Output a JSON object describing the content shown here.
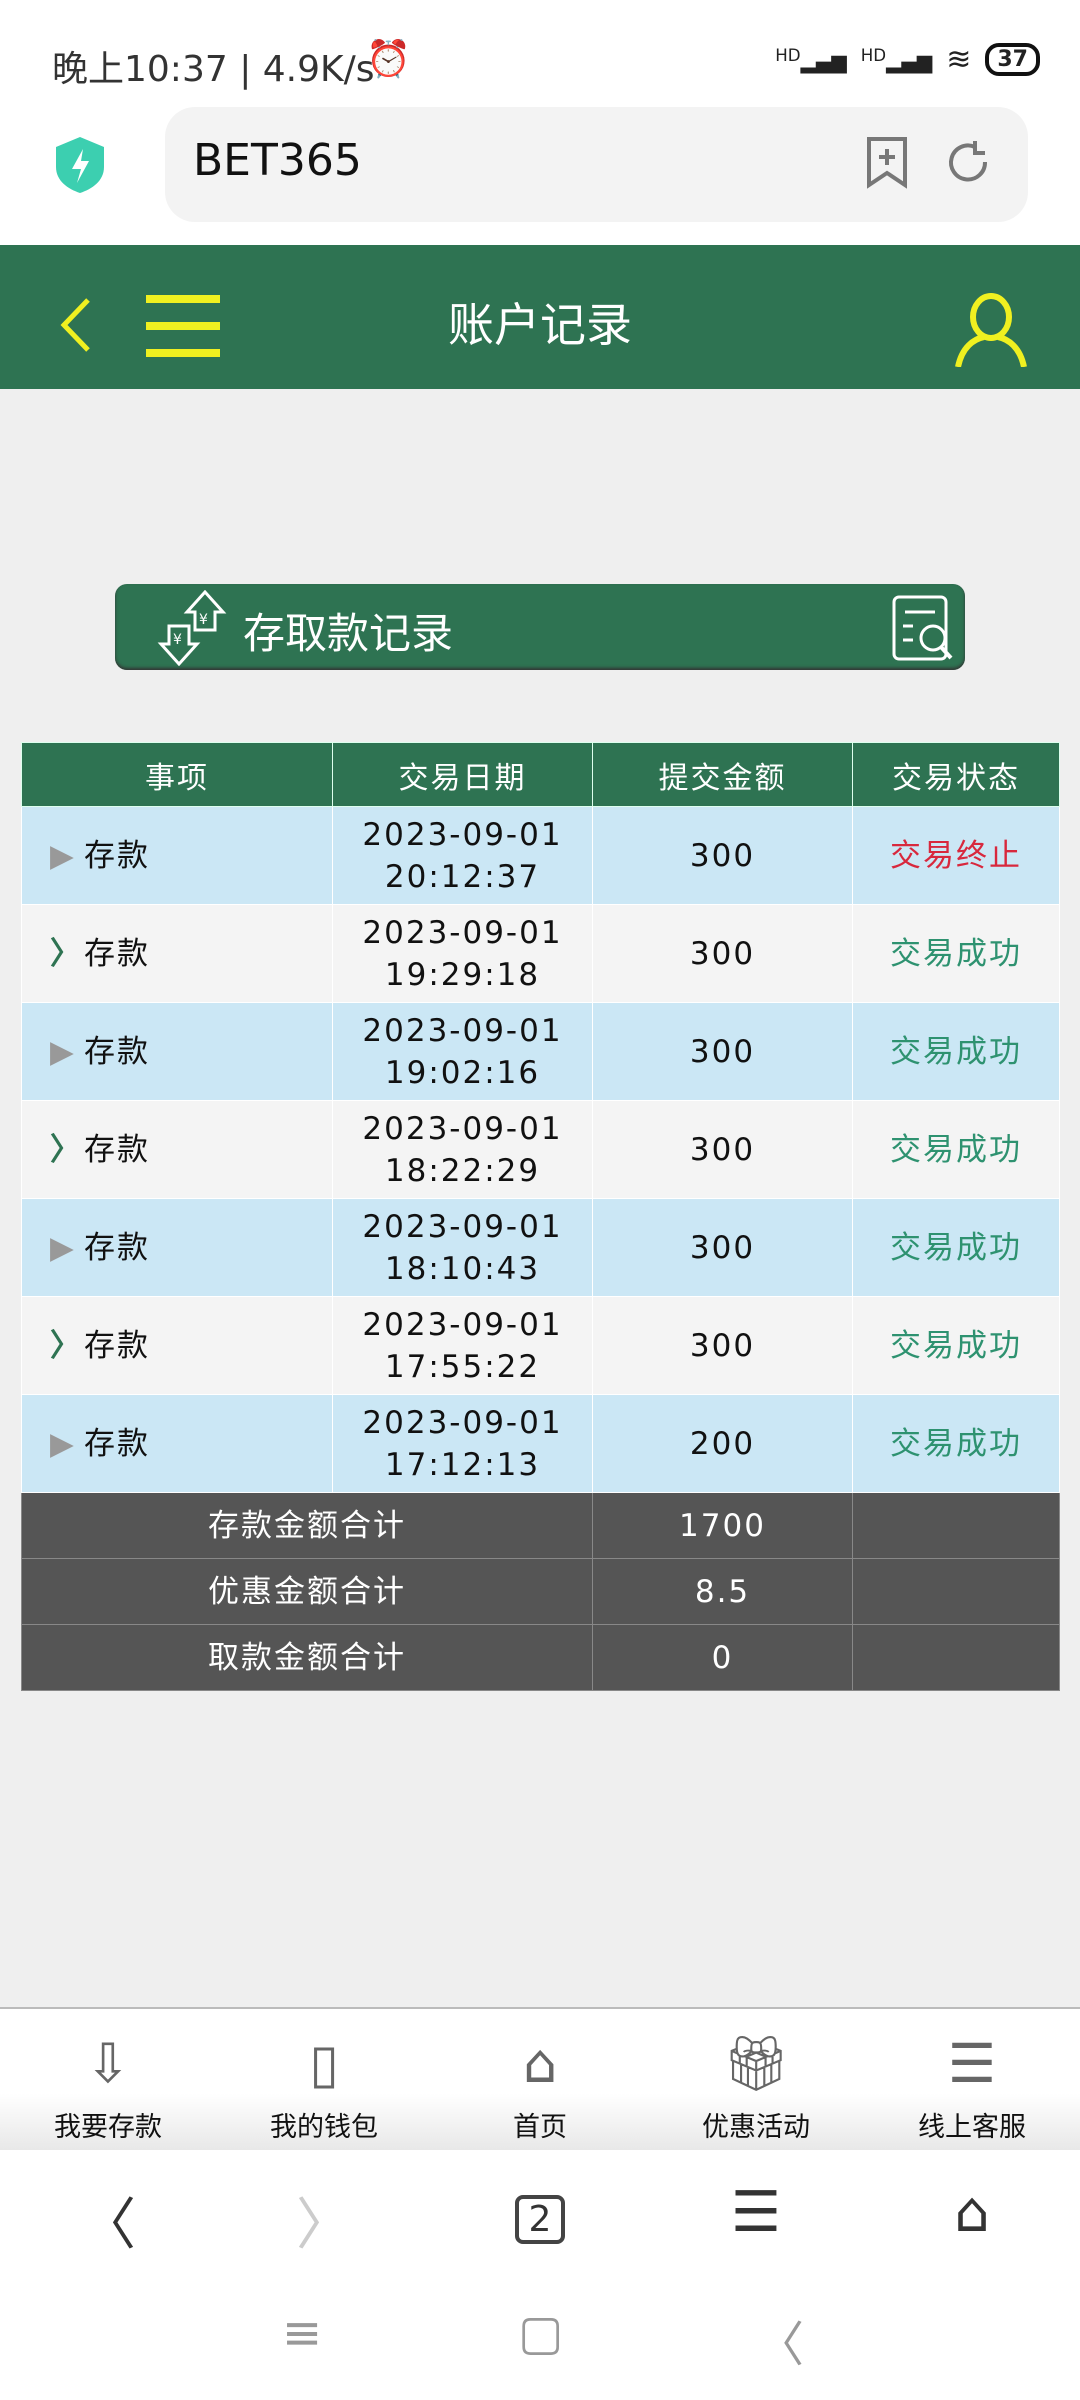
{
  "status_bar": {
    "time": "晚上10:37 | 4.9K/s",
    "signal1": "HD",
    "signal2": "HD",
    "battery": "37"
  },
  "browser": {
    "url": "BET365"
  },
  "header": {
    "title": "账户记录"
  },
  "banner": {
    "title": "存取款记录"
  },
  "table": {
    "headers": [
      "事项",
      "交易日期",
      "提交金额",
      "交易状态"
    ],
    "rows": [
      {
        "item": "存款",
        "date": "2023-09-01",
        "time": "20:12:37",
        "amount": "300",
        "status": "交易终止",
        "status_color": "#d8283d"
      },
      {
        "item": "存款",
        "date": "2023-09-01",
        "time": "19:29:18",
        "amount": "300",
        "status": "交易成功",
        "status_color": "#2e9270"
      },
      {
        "item": "存款",
        "date": "2023-09-01",
        "time": "19:02:16",
        "amount": "300",
        "status": "交易成功",
        "status_color": "#2e9270"
      },
      {
        "item": "存款",
        "date": "2023-09-01",
        "time": "18:22:29",
        "amount": "300",
        "status": "交易成功",
        "status_color": "#2e9270"
      },
      {
        "item": "存款",
        "date": "2023-09-01",
        "time": "18:10:43",
        "amount": "300",
        "status": "交易成功",
        "status_color": "#2e9270"
      },
      {
        "item": "存款",
        "date": "2023-09-01",
        "time": "17:55:22",
        "amount": "300",
        "status": "交易成功",
        "status_color": "#2e9270"
      },
      {
        "item": "存款",
        "date": "2023-09-01",
        "time": "17:12:13",
        "amount": "200",
        "status": "交易成功",
        "status_color": "#2e9270"
      }
    ],
    "summary": [
      {
        "label": "存款金额合计",
        "value": "1700"
      },
      {
        "label": "优惠金额合计",
        "value": "8.5"
      },
      {
        "label": "取款金额合计",
        "value": "0"
      }
    ]
  },
  "tabbar": [
    {
      "label": "我要存款",
      "icon": "deposit-arrow-icon"
    },
    {
      "label": "我的钱包",
      "icon": "wallet-icon"
    },
    {
      "label": "首页",
      "icon": "home-icon"
    },
    {
      "label": "优惠活动",
      "icon": "gift-icon"
    },
    {
      "label": "线上客服",
      "icon": "support-chat-icon"
    }
  ],
  "browser_nav": {
    "tabs_count": "2"
  },
  "colors": {
    "brand_green": "#2e7352",
    "accent_yellow": "#f0f020",
    "row_blue": "#cbe7f5"
  }
}
